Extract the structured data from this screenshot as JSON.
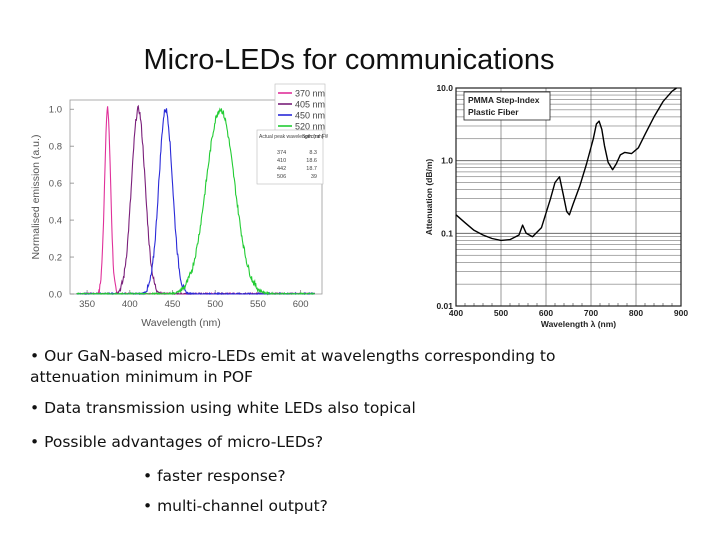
{
  "title": "Micro-LEDs for communications",
  "bullets": {
    "b1": "• Our GaN-based micro-LEDs emit at wavelengths corresponding to attenuation minimum in POF",
    "b2": "• Data transmission using white LEDs also topical",
    "b3": "• Possible advantages of micro-LEDs?",
    "b4": "• faster response?",
    "b5": "• multi-channel output?"
  },
  "chart_data": [
    {
      "type": "line",
      "xlabel": "Wavelength (nm)",
      "ylabel": "Normalised emission (a.u.)",
      "xlim": [
        330,
        625
      ],
      "ylim": [
        0,
        1.05
      ],
      "xticks": [
        350,
        400,
        450,
        500,
        550,
        600
      ],
      "yticks": [
        "0.0",
        "0.2",
        "0.4",
        "0.6",
        "0.8",
        "1.0"
      ],
      "legend_position": "top-center",
      "colors": [
        "#e0309a",
        "#7a1f7a",
        "#2a2ad8",
        "#22cc33"
      ],
      "series": [
        {
          "name": "370 nm",
          "peak": 374,
          "fwhm": 8.3
        },
        {
          "name": "405 nm",
          "peak": 410,
          "fwhm": 18.6
        },
        {
          "name": "450 nm",
          "peak": 442,
          "fwhm": 18.7
        },
        {
          "name": "520 nm",
          "peak": 506,
          "fwhm": 39
        }
      ],
      "table": {
        "col1_header": "Actual peak wavelength (nm)",
        "col2_header": "Spectral FWHM (nm)",
        "rows": [
          [
            "374",
            "8.3"
          ],
          [
            "410",
            "18.6"
          ],
          [
            "442",
            "18.7"
          ],
          [
            "506",
            "39"
          ]
        ]
      }
    },
    {
      "type": "line",
      "title": "PMMA Step-Index Plastic Fiber",
      "xlabel": "Wavelength  λ  (nm)",
      "ylabel": "Attenuation (dB/m)",
      "yscale": "log",
      "xlim": [
        400,
        900
      ],
      "ylim": [
        0.01,
        10
      ],
      "xticks": [
        "400",
        "500",
        "600",
        "700",
        "800",
        "900"
      ],
      "yticks": [
        "0.01",
        "0.1",
        "1.0",
        "10.0"
      ],
      "grid": true,
      "series": [
        {
          "x": [
            400,
            420,
            440,
            460,
            480,
            500,
            520,
            540,
            548,
            556,
            570,
            590,
            610,
            620,
            630,
            638,
            646,
            652,
            660,
            675,
            690,
            705,
            712,
            718,
            724,
            730,
            738,
            748,
            756,
            765,
            775,
            790,
            805,
            820,
            840,
            860,
            880,
            890
          ],
          "y": [
            0.18,
            0.14,
            0.11,
            0.095,
            0.085,
            0.08,
            0.082,
            0.095,
            0.13,
            0.1,
            0.09,
            0.12,
            0.3,
            0.5,
            0.6,
            0.35,
            0.2,
            0.18,
            0.25,
            0.45,
            0.9,
            2.0,
            3.2,
            3.5,
            2.7,
            1.6,
            0.95,
            0.75,
            0.9,
            1.2,
            1.3,
            1.25,
            1.5,
            2.3,
            4.0,
            6.5,
            9.0,
            10.0
          ]
        }
      ]
    }
  ]
}
